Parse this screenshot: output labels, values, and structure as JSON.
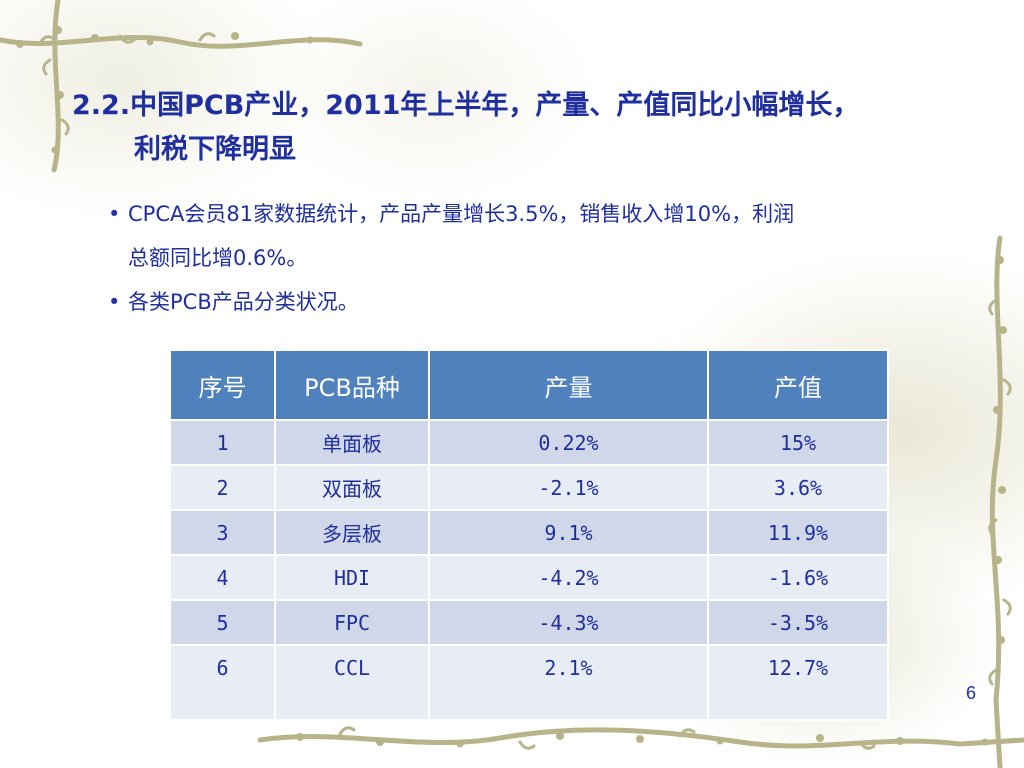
{
  "slide": {
    "title_line1": "2.2.中国PCB产业，2011年上半年，产量、产值同比小幅增长，",
    "title_line2": "利税下降明显",
    "bullet_symbol": "•",
    "bullets": [
      {
        "line1": "CPCA会员81家数据统计，产品产量增长3.5%，销售收入增10%，利润",
        "line2": "总额同比增0.6%。"
      },
      {
        "line1": "各类PCB产品分类状况。"
      }
    ],
    "page_number": "6"
  },
  "table": {
    "headers": [
      "序号",
      "PCB品种",
      "产量",
      "产值"
    ],
    "rows": [
      [
        "1",
        "单面板",
        "0.22%",
        "15%"
      ],
      [
        "2",
        "双面板",
        "-2.1%",
        "3.6%"
      ],
      [
        "3",
        "多层板",
        "9.1%",
        "11.9%"
      ],
      [
        "4",
        "HDI",
        "-4.2%",
        "-1.6%"
      ],
      [
        "5",
        "FPC",
        "-4.3%",
        "-3.5%"
      ],
      [
        "6",
        "CCL",
        "2.1%",
        "12.7%"
      ]
    ]
  },
  "colors": {
    "text": "#1f2f9e",
    "header_bg": "#4f81bd",
    "row_odd": "#cfd7e9",
    "row_even": "#e8ecf4",
    "vine": "#b8b489"
  },
  "decor": {
    "vine_icon": "vine-decoration-icon"
  }
}
